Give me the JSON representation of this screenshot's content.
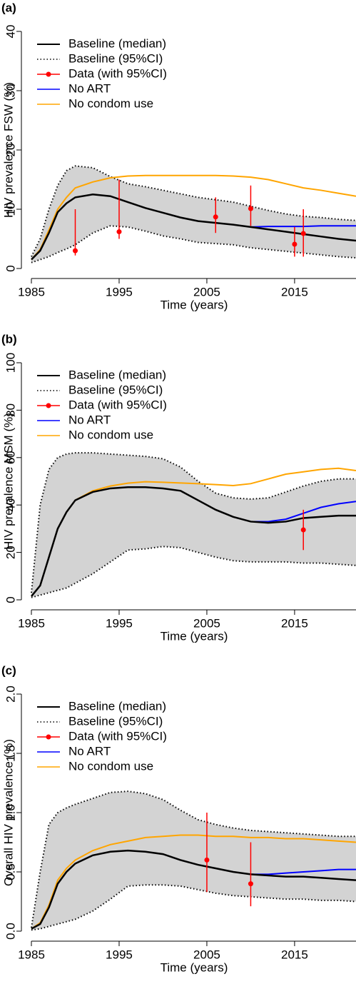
{
  "chart_data": [
    {
      "type": "line",
      "panel_label": "(a)",
      "ylabel": "HIV prevalence FSW (%)",
      "xlabel": "Time (years)",
      "xlim": [
        1985,
        2022
      ],
      "xticks": [
        1985,
        1995,
        2005,
        2015
      ],
      "ylim": [
        0,
        40
      ],
      "yticks": [
        0,
        10,
        20,
        30,
        40
      ],
      "x": [
        1985,
        1986,
        1987,
        1988,
        1989,
        1990,
        1992,
        1994,
        1996,
        1998,
        2000,
        2002,
        2004,
        2006,
        2008,
        2010,
        2012,
        2014,
        2016,
        2018,
        2020,
        2022
      ],
      "band": {
        "name": "Baseline (95%CI)",
        "color": "#000000",
        "fill": "#d3d3d3",
        "lower": [
          1,
          1.5,
          2,
          2.7,
          3.3,
          4,
          6,
          7.2,
          7,
          6.3,
          5.5,
          5,
          4.4,
          4.2,
          4,
          3.5,
          3.2,
          2.9,
          2.6,
          2.3,
          2.0,
          1.8
        ],
        "upper": [
          2,
          5,
          10,
          14,
          16.5,
          17.3,
          17,
          15.5,
          14.3,
          13.8,
          13.2,
          12.6,
          12,
          11.6,
          11.2,
          10.5,
          9.8,
          9.2,
          8.8,
          8.6,
          8.3,
          8.1
        ]
      },
      "series": [
        {
          "name": "Baseline (median)",
          "color": "#000000",
          "values": [
            1.5,
            3,
            6,
            9.5,
            11,
            12,
            12.5,
            12.2,
            11.2,
            10.2,
            9.4,
            8.6,
            8.0,
            7.7,
            7.4,
            7.0,
            6.6,
            6.2,
            5.8,
            5.4,
            5.0,
            4.7
          ]
        },
        {
          "name": "No ART",
          "color": "#0000ff",
          "values": [
            null,
            null,
            null,
            null,
            null,
            null,
            null,
            null,
            null,
            null,
            null,
            null,
            null,
            null,
            null,
            7.0,
            7.1,
            7.1,
            7.1,
            7.2,
            7.2,
            7.2
          ]
        },
        {
          "name": "No condom use",
          "color": "#ffa500",
          "values": [
            1.5,
            3.2,
            6.5,
            10,
            12,
            13.6,
            14.6,
            15.3,
            15.6,
            15.7,
            15.7,
            15.7,
            15.7,
            15.7,
            15.6,
            15.4,
            15,
            14.3,
            13.6,
            13.2,
            12.7,
            12.2
          ]
        }
      ],
      "points": {
        "name": "Data (with 95%CI)",
        "color": "#ff0000",
        "x": [
          1990,
          1995,
          2006,
          2010,
          2015,
          2016
        ],
        "values": [
          3,
          6.2,
          8.7,
          10.1,
          4.1,
          5.9
        ],
        "lower": [
          2.2,
          5,
          6,
          7.2,
          2,
          2
        ],
        "upper": [
          10,
          15,
          12,
          14,
          7,
          10
        ]
      }
    },
    {
      "type": "line",
      "panel_label": "(b)",
      "ylabel": "HIV prevalence MSM (%)",
      "xlabel": "Time (years)",
      "xlim": [
        1985,
        2022
      ],
      "xticks": [
        1985,
        1995,
        2005,
        2015
      ],
      "ylim": [
        0,
        100
      ],
      "yticks": [
        0,
        20,
        40,
        60,
        80,
        100
      ],
      "x": [
        1985,
        1986,
        1987,
        1988,
        1989,
        1990,
        1992,
        1994,
        1996,
        1998,
        2000,
        2002,
        2004,
        2006,
        2008,
        2010,
        2012,
        2014,
        2016,
        2018,
        2020,
        2022
      ],
      "band": {
        "name": "Baseline (95%CI)",
        "color": "#000000",
        "fill": "#d3d3d3",
        "lower": [
          1,
          2,
          3,
          4,
          5,
          7,
          11,
          16,
          21,
          21.5,
          22.5,
          22,
          20,
          18,
          16.5,
          16,
          16,
          16,
          15.5,
          15.5,
          15,
          14.5
        ],
        "upper": [
          3,
          40,
          55,
          60,
          61.5,
          62,
          62,
          61.5,
          61,
          60.5,
          59.5,
          56,
          50,
          45,
          43,
          42.5,
          43,
          45.5,
          48,
          50,
          51,
          51
        ]
      },
      "series": [
        {
          "name": "Baseline (median)",
          "color": "#000000",
          "values": [
            1.5,
            6,
            18,
            30,
            37,
            42,
            45.5,
            47,
            47.5,
            47.5,
            47,
            46,
            42,
            38,
            35,
            33,
            32.5,
            33,
            34.5,
            35,
            35.5,
            35.5
          ]
        },
        {
          "name": "No ART",
          "color": "#0000ff",
          "values": [
            null,
            null,
            null,
            null,
            null,
            null,
            null,
            null,
            null,
            null,
            null,
            null,
            null,
            null,
            null,
            33,
            33,
            34,
            36.5,
            39,
            40.5,
            41.5
          ]
        },
        {
          "name": "No condom use",
          "color": "#ffa500",
          "values": [
            1.5,
            6,
            18,
            30,
            37,
            42,
            46,
            48,
            49.2,
            49.8,
            49.6,
            49.3,
            49,
            48.6,
            48.2,
            49,
            51,
            53,
            54,
            55,
            55.5,
            54.5
          ]
        }
      ],
      "points": {
        "name": "Data (with 95%CI)",
        "color": "#ff0000",
        "x": [
          2016
        ],
        "values": [
          29.5
        ],
        "lower": [
          21
        ],
        "upper": [
          38
        ]
      }
    },
    {
      "type": "line",
      "panel_label": "(c)",
      "ylabel": "Overall HIV prevalence (%)",
      "xlabel": "Time (years)",
      "xlim": [
        1985,
        2022
      ],
      "xticks": [
        1985,
        1995,
        2005,
        2015
      ],
      "ylim": [
        0,
        2
      ],
      "yticks": [
        {
          "value": 0,
          "label": "0.0"
        },
        0.5,
        {
          "value": 1,
          "label": "1.0"
        },
        1.5,
        {
          "value": 2,
          "label": "2.0"
        }
      ],
      "x": [
        1985,
        1986,
        1987,
        1988,
        1989,
        1990,
        1992,
        1994,
        1996,
        1998,
        2000,
        2002,
        2004,
        2006,
        2008,
        2010,
        2012,
        2014,
        2016,
        2018,
        2020,
        2022
      ],
      "band": {
        "name": "Baseline (95%CI)",
        "color": "#000000",
        "fill": "#d3d3d3",
        "lower": [
          0.01,
          0.02,
          0.04,
          0.06,
          0.08,
          0.1,
          0.17,
          0.27,
          0.38,
          0.39,
          0.39,
          0.38,
          0.35,
          0.32,
          0.3,
          0.29,
          0.28,
          0.27,
          0.27,
          0.26,
          0.26,
          0.25
        ],
        "upper": [
          0.03,
          0.5,
          0.9,
          1.0,
          1.04,
          1.07,
          1.12,
          1.17,
          1.18,
          1.16,
          1.11,
          1.02,
          0.94,
          0.9,
          0.87,
          0.85,
          0.84,
          0.83,
          0.82,
          0.81,
          0.8,
          0.8
        ]
      },
      "series": [
        {
          "name": "Baseline (median)",
          "color": "#000000",
          "values": [
            0.02,
            0.06,
            0.2,
            0.4,
            0.5,
            0.57,
            0.64,
            0.67,
            0.68,
            0.67,
            0.65,
            0.6,
            0.56,
            0.53,
            0.5,
            0.48,
            0.47,
            0.46,
            0.46,
            0.45,
            0.44,
            0.43
          ]
        },
        {
          "name": "No ART",
          "color": "#0000ff",
          "values": [
            null,
            null,
            null,
            null,
            null,
            null,
            null,
            null,
            null,
            null,
            null,
            null,
            null,
            null,
            null,
            0.48,
            0.48,
            0.49,
            0.5,
            0.51,
            0.52,
            0.52
          ]
        },
        {
          "name": "No condom use",
          "color": "#ffa500",
          "values": [
            0.02,
            0.07,
            0.22,
            0.43,
            0.53,
            0.6,
            0.68,
            0.73,
            0.76,
            0.79,
            0.8,
            0.81,
            0.81,
            0.8,
            0.8,
            0.79,
            0.79,
            0.78,
            0.78,
            0.77,
            0.76,
            0.75
          ]
        }
      ],
      "points": {
        "name": "Data (with 95%CI)",
        "color": "#ff0000",
        "x": [
          2005,
          2010
        ],
        "values": [
          0.6,
          0.4
        ],
        "lower": [
          0.33,
          0.21
        ],
        "upper": [
          1.0,
          0.75
        ]
      }
    }
  ]
}
